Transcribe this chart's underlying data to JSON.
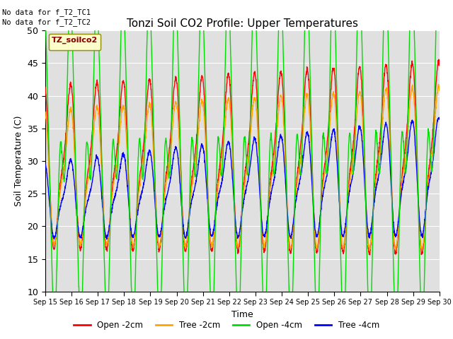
{
  "title": "Tonzi Soil CO2 Profile: Upper Temperatures",
  "ylabel": "Soil Temperature (C)",
  "xlabel": "Time",
  "ylim": [
    10,
    50
  ],
  "xlim": [
    0,
    15
  ],
  "background_color": "#e0e0e0",
  "annotation1": "No data for f_T2_TC1",
  "annotation2": "No data for f_T2_TC2",
  "legend_box_label": "TZ_soilco2",
  "x_tick_labels": [
    "Sep 15",
    "Sep 16",
    "Sep 17",
    "Sep 18",
    "Sep 19",
    "Sep 20",
    "Sep 21",
    "Sep 22",
    "Sep 23",
    "Sep 24",
    "Sep 25",
    "Sep 26",
    "Sep 27",
    "Sep 28",
    "Sep 29",
    "Sep 30"
  ],
  "colors": {
    "open_2cm": "#ff0000",
    "tree_2cm": "#ffa500",
    "open_4cm": "#00dd00",
    "tree_4cm": "#0000ff"
  },
  "legend_labels": [
    "Open -2cm",
    "Tree -2cm",
    "Open -4cm",
    "Tree -4cm"
  ]
}
